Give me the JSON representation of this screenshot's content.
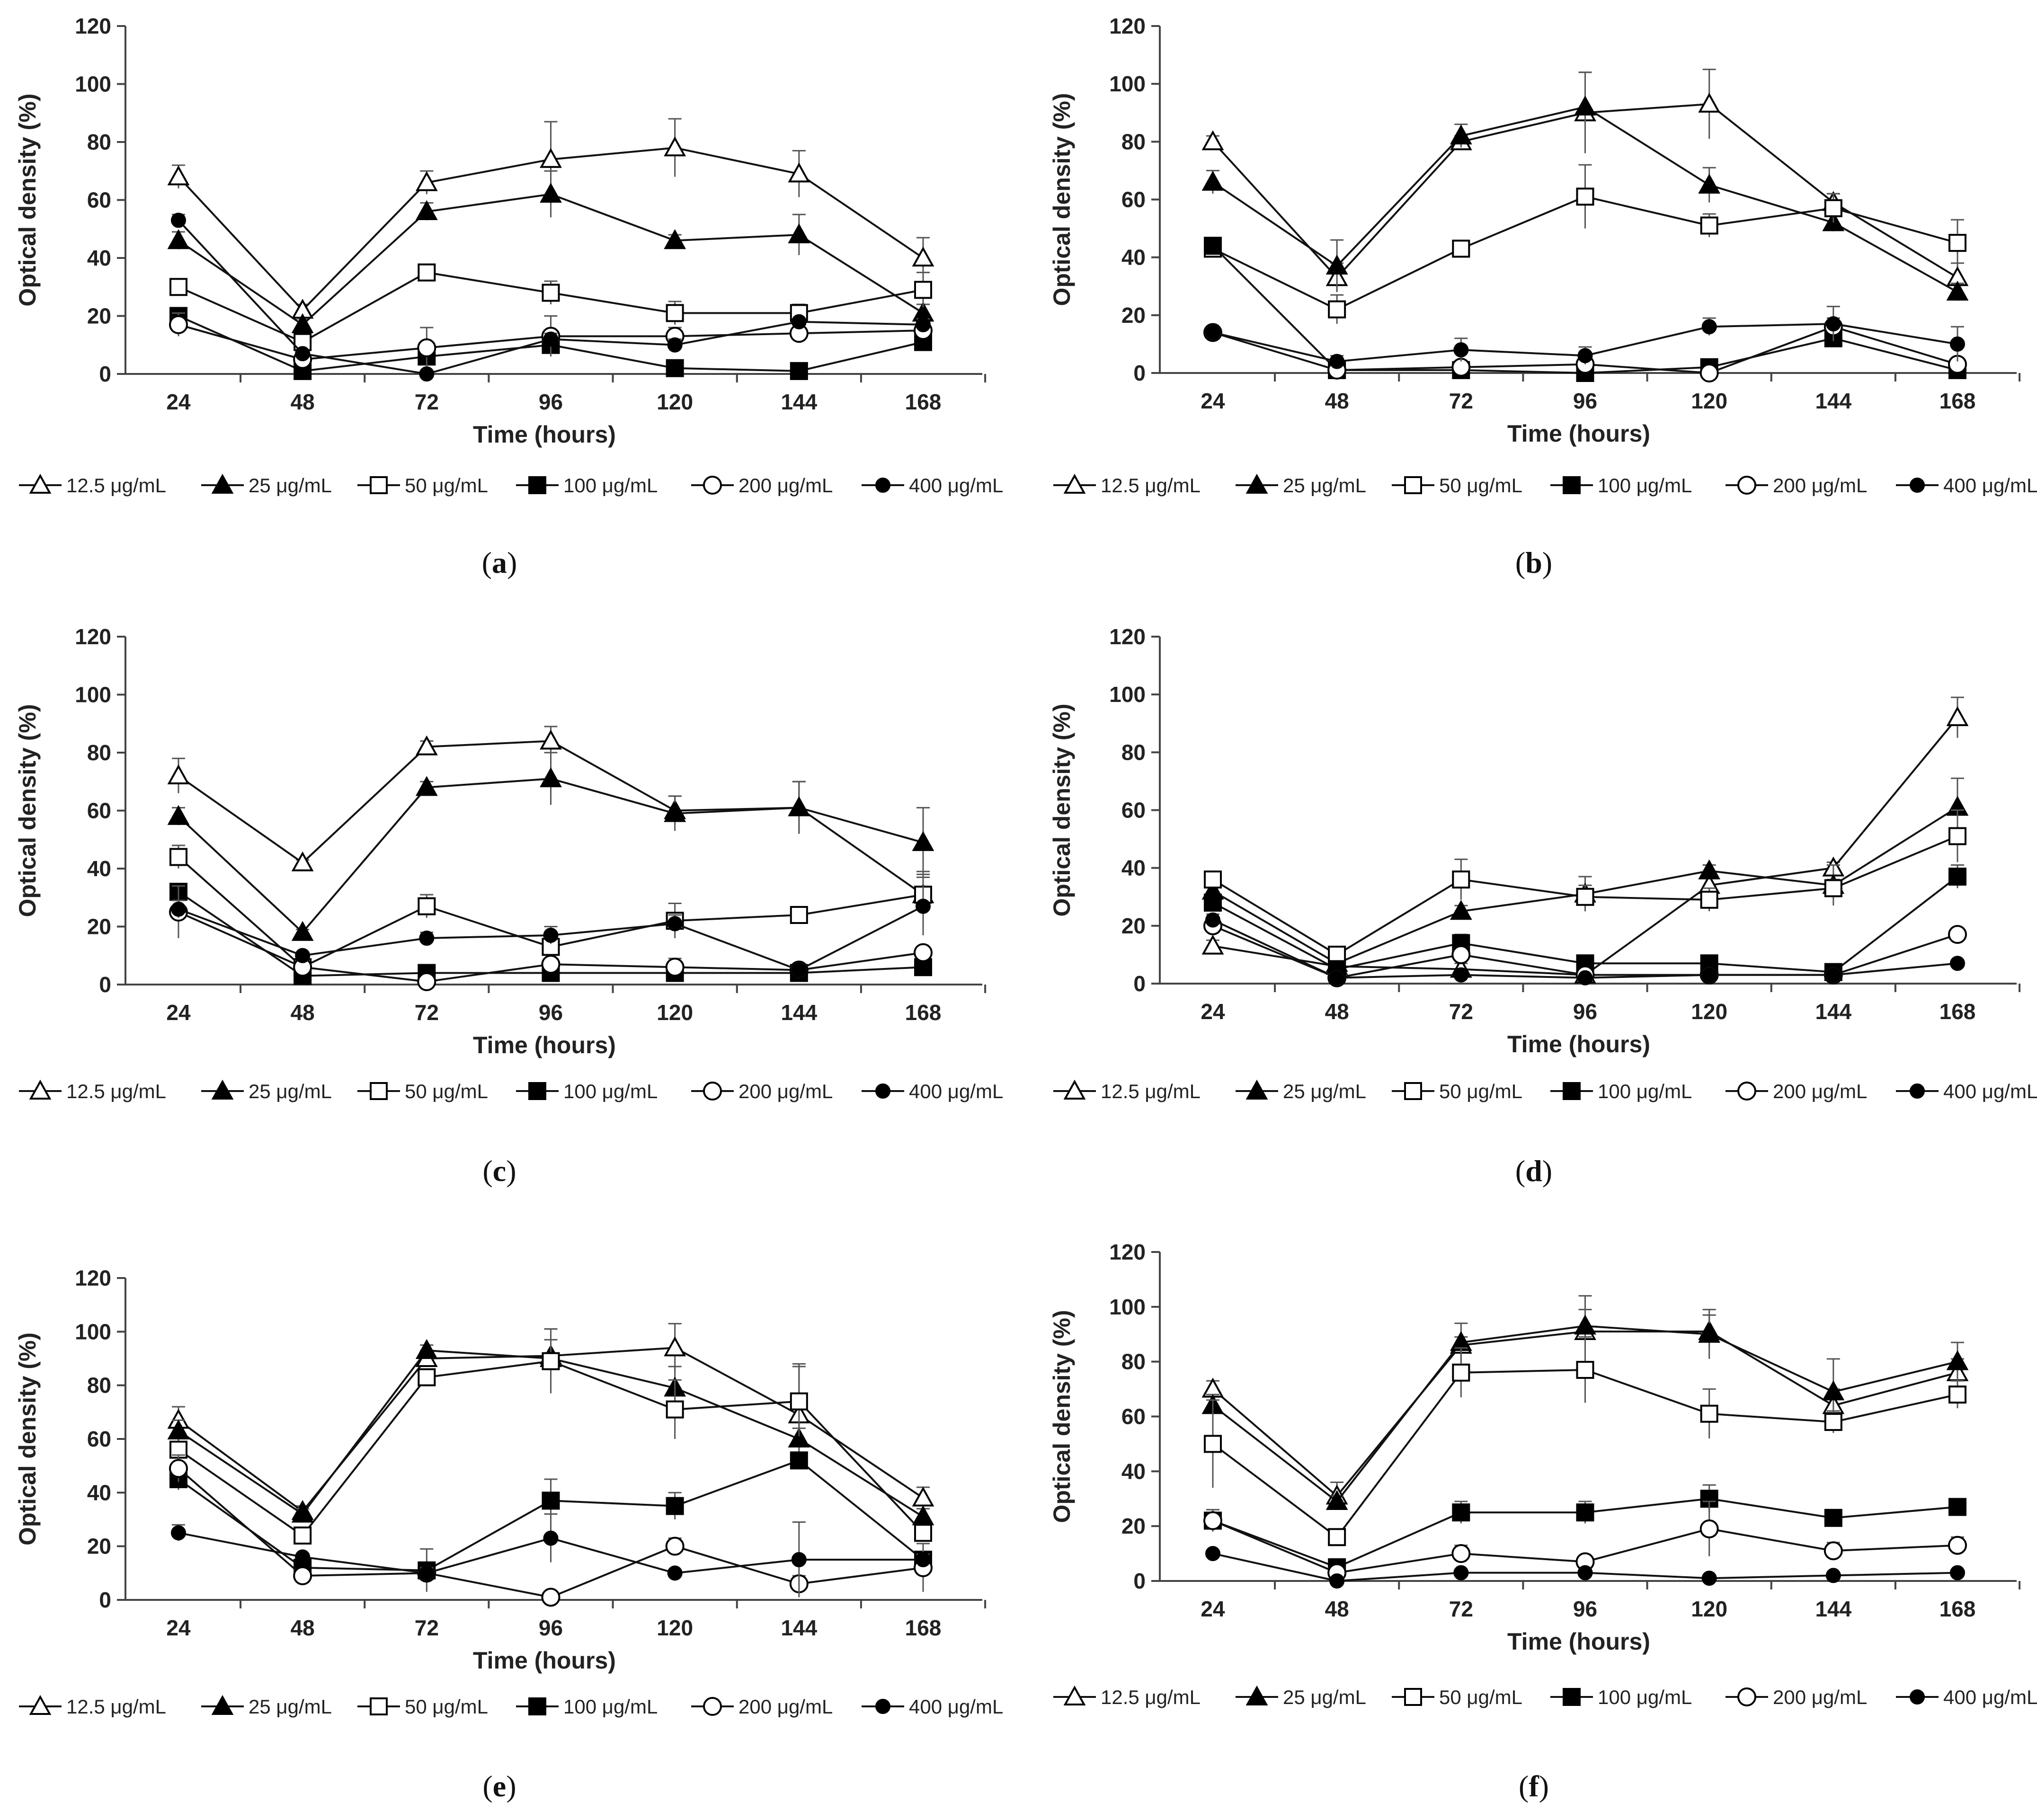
{
  "figure": {
    "panels": [
      "a",
      "b",
      "c",
      "d",
      "e",
      "f"
    ]
  },
  "chart_data": [
    {
      "panel": "a",
      "type": "line",
      "xlabel": "Time (hours)",
      "ylabel": "Optical density (%)",
      "categories": [
        "24",
        "48",
        "72",
        "96",
        "120",
        "144",
        "168"
      ],
      "yticks": [
        "0",
        "20",
        "40",
        "60",
        "80",
        "100",
        "120"
      ],
      "ylim": [
        0,
        120
      ],
      "legend_position": "bottom",
      "series": [
        {
          "name": "12.5 μg/mL",
          "marker": "triangle-open",
          "values": [
            68,
            22,
            66,
            74,
            78,
            69,
            40
          ],
          "errors": [
            4,
            2,
            4,
            13,
            10,
            8,
            7
          ]
        },
        {
          "name": "25 μg/mL",
          "marker": "triangle-filled",
          "values": [
            46,
            17,
            56,
            62,
            46,
            48,
            21
          ],
          "errors": [
            3,
            2,
            3,
            8,
            2,
            7,
            3
          ]
        },
        {
          "name": "50 μg/mL",
          "marker": "square-open",
          "values": [
            30,
            11,
            35,
            28,
            21,
            21,
            29
          ],
          "errors": [
            2,
            2,
            2,
            4,
            4,
            3,
            6
          ]
        },
        {
          "name": "100 μg/mL",
          "marker": "square-filled",
          "values": [
            20,
            1,
            6,
            10,
            2,
            1,
            11
          ],
          "errors": [
            2,
            1,
            2,
            3,
            1,
            1,
            2
          ]
        },
        {
          "name": "200 μg/mL",
          "marker": "circle-open",
          "values": [
            17,
            5,
            9,
            13,
            13,
            14,
            15
          ],
          "errors": [
            4,
            2,
            7,
            7,
            3,
            2,
            2
          ]
        },
        {
          "name": "400 μg/mL",
          "marker": "circle-filled",
          "values": [
            53,
            7,
            0,
            12,
            10,
            18,
            17
          ],
          "errors": [
            2,
            1,
            1,
            2,
            2,
            1,
            2
          ]
        }
      ]
    },
    {
      "panel": "b",
      "type": "line",
      "xlabel": "Time (hours)",
      "ylabel": "Optical density (%)",
      "categories": [
        "24",
        "48",
        "72",
        "96",
        "120",
        "144",
        "168"
      ],
      "yticks": [
        "0",
        "20",
        "40",
        "60",
        "80",
        "100",
        "120"
      ],
      "ylim": [
        0,
        120
      ],
      "legend_position": "bottom",
      "series": [
        {
          "name": "12.5 μg/mL",
          "marker": "triangle-open",
          "values": [
            80,
            33,
            80,
            90,
            93,
            59,
            33
          ],
          "errors": [
            2,
            5,
            2,
            14,
            12,
            3,
            5
          ]
        },
        {
          "name": "25 μg/mL",
          "marker": "triangle-filled",
          "values": [
            66,
            37,
            82,
            92,
            65,
            52,
            28
          ],
          "errors": [
            4,
            9,
            4,
            12,
            6,
            3,
            3
          ]
        },
        {
          "name": "50 μg/mL",
          "marker": "square-open",
          "values": [
            43,
            22,
            43,
            61,
            51,
            57,
            45
          ],
          "errors": [
            2,
            5,
            2,
            11,
            4,
            5,
            8
          ]
        },
        {
          "name": "100 μg/mL",
          "marker": "square-filled",
          "values": [
            44,
            1,
            1,
            0,
            2,
            12,
            1
          ],
          "errors": [
            1,
            1,
            1,
            1,
            1,
            3,
            1
          ]
        },
        {
          "name": "200 μg/mL",
          "marker": "circle-open",
          "values": [
            14,
            1,
            2,
            3,
            0,
            16,
            3
          ],
          "errors": [
            1,
            1,
            1,
            1,
            1,
            3,
            2
          ]
        },
        {
          "name": "400 μg/mL",
          "marker": "circle-filled",
          "values": [
            14,
            4,
            8,
            6,
            16,
            17,
            10
          ],
          "errors": [
            1,
            2,
            4,
            3,
            3,
            6,
            6
          ]
        }
      ]
    },
    {
      "panel": "c",
      "type": "line",
      "xlabel": "Time (hours)",
      "ylabel": "Optical density (%)",
      "categories": [
        "24",
        "48",
        "72",
        "96",
        "120",
        "144",
        "168"
      ],
      "yticks": [
        "0",
        "20",
        "40",
        "60",
        "80",
        "100",
        "120"
      ],
      "ylim": [
        0,
        120
      ],
      "legend_position": "bottom",
      "series": [
        {
          "name": "12.5 μg/mL",
          "marker": "triangle-open",
          "values": [
            72,
            42,
            82,
            84,
            60,
            61,
            31
          ],
          "errors": [
            6,
            1,
            2,
            5,
            5,
            9,
            7
          ]
        },
        {
          "name": "25 μg/mL",
          "marker": "triangle-filled",
          "values": [
            58,
            18,
            68,
            71,
            59,
            61,
            49
          ],
          "errors": [
            3,
            1,
            2,
            9,
            6,
            9,
            12
          ]
        },
        {
          "name": "50 μg/mL",
          "marker": "square-open",
          "values": [
            44,
            6,
            27,
            13,
            22,
            24,
            31
          ],
          "errors": [
            4,
            1,
            4,
            3,
            6,
            2,
            8
          ]
        },
        {
          "name": "100 μg/mL",
          "marker": "square-filled",
          "values": [
            32,
            3,
            4,
            4,
            4,
            4,
            6
          ],
          "errors": [
            2,
            1,
            1,
            1,
            1,
            1,
            1
          ]
        },
        {
          "name": "200 μg/mL",
          "marker": "circle-open",
          "values": [
            25,
            6,
            1,
            7,
            6,
            5,
            11
          ],
          "errors": [
            9,
            1,
            1,
            1,
            3,
            1,
            2
          ]
        },
        {
          "name": "400 μg/mL",
          "marker": "circle-filled",
          "values": [
            26,
            10,
            16,
            17,
            21,
            5,
            27
          ],
          "errors": [
            3,
            1,
            2,
            3,
            3,
            1,
            10
          ]
        }
      ]
    },
    {
      "panel": "d",
      "type": "line",
      "xlabel": "Time (hours)",
      "ylabel": "Optical density (%)",
      "categories": [
        "24",
        "48",
        "72",
        "96",
        "120",
        "144",
        "168"
      ],
      "yticks": [
        "0",
        "20",
        "40",
        "60",
        "80",
        "100",
        "120"
      ],
      "ylim": [
        0,
        120
      ],
      "legend_position": "bottom",
      "series": [
        {
          "name": "12.5 μg/mL",
          "marker": "triangle-open",
          "values": [
            13,
            6,
            5,
            3,
            34,
            40,
            92
          ],
          "errors": [
            2,
            1,
            2,
            1,
            3,
            2,
            7
          ]
        },
        {
          "name": "25 μg/mL",
          "marker": "triangle-filled",
          "values": [
            32,
            7,
            25,
            31,
            39,
            34,
            61
          ],
          "errors": [
            2,
            1,
            2,
            6,
            2,
            7,
            10
          ]
        },
        {
          "name": "50 μg/mL",
          "marker": "square-open",
          "values": [
            36,
            10,
            36,
            30,
            29,
            33,
            51
          ],
          "errors": [
            2,
            1,
            7,
            4,
            4,
            3,
            9
          ]
        },
        {
          "name": "100 μg/mL",
          "marker": "square-filled",
          "values": [
            28,
            5,
            14,
            7,
            7,
            4,
            37
          ],
          "errors": [
            2,
            1,
            3,
            1,
            1,
            1,
            4
          ]
        },
        {
          "name": "200 μg/mL",
          "marker": "circle-open",
          "values": [
            20,
            2,
            10,
            3,
            3,
            3,
            17
          ],
          "errors": [
            2,
            1,
            2,
            1,
            1,
            1,
            1
          ]
        },
        {
          "name": "400 μg/mL",
          "marker": "circle-filled",
          "values": [
            22,
            2,
            3,
            2,
            3,
            3,
            7
          ],
          "errors": [
            2,
            1,
            1,
            1,
            1,
            1,
            1
          ]
        }
      ]
    },
    {
      "panel": "e",
      "type": "line",
      "xlabel": "Time (hours)",
      "ylabel": "Optical density (%)",
      "categories": [
        "24",
        "48",
        "72",
        "96",
        "120",
        "144",
        "168"
      ],
      "yticks": [
        "0",
        "20",
        "40",
        "60",
        "80",
        "100",
        "120"
      ],
      "ylim": [
        0,
        120
      ],
      "legend_position": "bottom",
      "series": [
        {
          "name": "12.5 μg/mL",
          "marker": "triangle-open",
          "values": [
            67,
            33,
            90,
            91,
            94,
            69,
            38
          ],
          "errors": [
            5,
            2,
            3,
            10,
            9,
            19,
            4
          ]
        },
        {
          "name": "25 μg/mL",
          "marker": "triangle-filled",
          "values": [
            63,
            32,
            93,
            90,
            79,
            60,
            31
          ],
          "errors": [
            4,
            2,
            2,
            7,
            8,
            4,
            3
          ]
        },
        {
          "name": "50 μg/mL",
          "marker": "square-open",
          "values": [
            56,
            24,
            83,
            89,
            71,
            74,
            25
          ],
          "errors": [
            3,
            2,
            3,
            12,
            11,
            13,
            3
          ]
        },
        {
          "name": "100 μg/mL",
          "marker": "square-filled",
          "values": [
            45,
            12,
            11,
            37,
            35,
            52,
            15
          ],
          "errors": [
            4,
            2,
            8,
            8,
            5,
            3,
            3
          ]
        },
        {
          "name": "200 μg/mL",
          "marker": "circle-open",
          "values": [
            49,
            9,
            10,
            1,
            20,
            6,
            12
          ],
          "errors": [
            5,
            1,
            1,
            1,
            3,
            3,
            9
          ]
        },
        {
          "name": "400 μg/mL",
          "marker": "circle-filled",
          "values": [
            25,
            16,
            10,
            23,
            10,
            15,
            15
          ],
          "errors": [
            3,
            1,
            2,
            9,
            1,
            14,
            2
          ]
        }
      ]
    },
    {
      "panel": "f",
      "type": "line",
      "xlabel": "Time (hours)",
      "ylabel": "Optical density (%)",
      "categories": [
        "24",
        "48",
        "72",
        "96",
        "120",
        "144",
        "168"
      ],
      "yticks": [
        "0",
        "20",
        "40",
        "60",
        "80",
        "100",
        "120"
      ],
      "ylim": [
        0,
        120
      ],
      "legend_position": "bottom",
      "series": [
        {
          "name": "12.5 μg/mL",
          "marker": "triangle-open",
          "values": [
            70,
            31,
            86,
            91,
            91,
            64,
            76
          ],
          "errors": [
            3,
            5,
            3,
            8,
            6,
            6,
            5
          ]
        },
        {
          "name": "25 μg/mL",
          "marker": "triangle-filled",
          "values": [
            64,
            29,
            87,
            93,
            90,
            69,
            80
          ],
          "errors": [
            4,
            2,
            7,
            11,
            9,
            12,
            7
          ]
        },
        {
          "name": "50 μg/mL",
          "marker": "square-open",
          "values": [
            50,
            16,
            76,
            77,
            61,
            58,
            68
          ],
          "errors": [
            16,
            3,
            9,
            12,
            9,
            4,
            5
          ]
        },
        {
          "name": "100 μg/mL",
          "marker": "square-filled",
          "values": [
            22,
            5,
            25,
            25,
            30,
            23,
            27
          ],
          "errors": [
            3,
            2,
            4,
            4,
            5,
            3,
            2
          ]
        },
        {
          "name": "200 μg/mL",
          "marker": "circle-open",
          "values": [
            22,
            3,
            10,
            7,
            19,
            11,
            13
          ],
          "errors": [
            4,
            2,
            3,
            1,
            10,
            3,
            3
          ]
        },
        {
          "name": "400 μg/mL",
          "marker": "circle-filled",
          "values": [
            10,
            0,
            3,
            3,
            1,
            2,
            3
          ],
          "errors": [
            1,
            1,
            1,
            1,
            1,
            1,
            1
          ]
        }
      ]
    }
  ]
}
